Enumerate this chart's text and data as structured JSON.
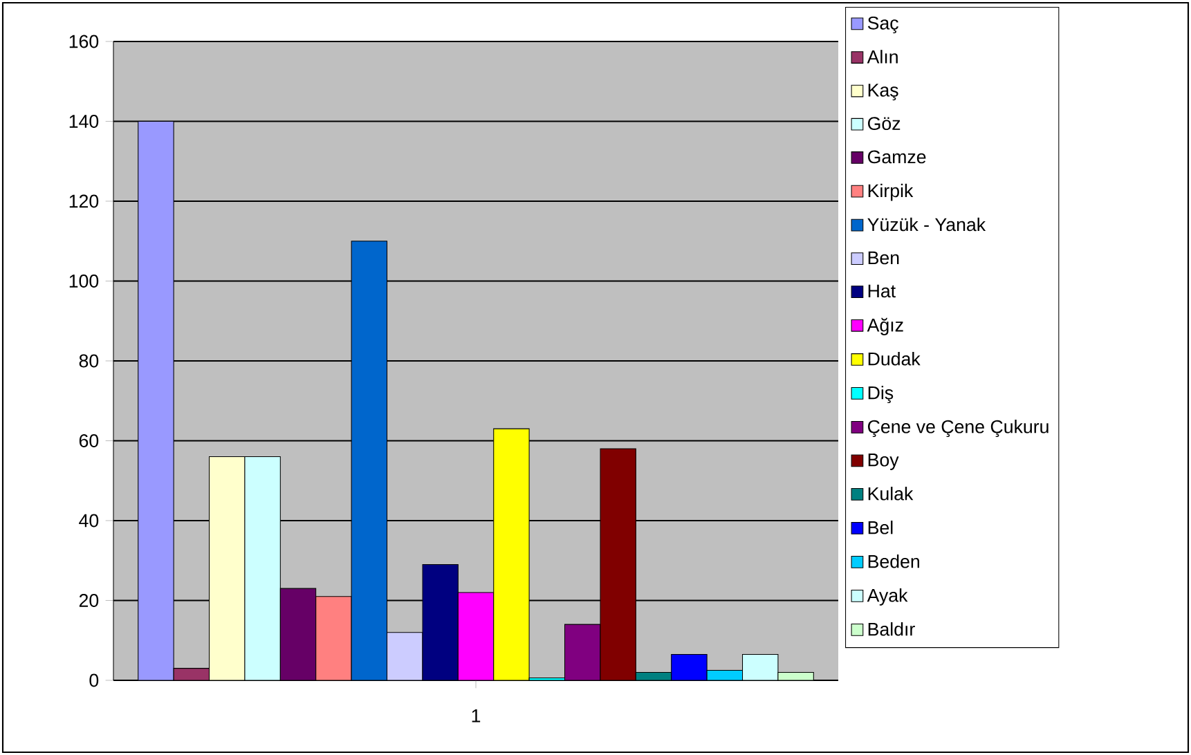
{
  "chart_data": {
    "type": "bar",
    "categories": [
      "1"
    ],
    "series": [
      {
        "name": "Saç",
        "color": "#9999ff",
        "values": [
          140
        ]
      },
      {
        "name": "Alın",
        "color": "#993366",
        "values": [
          3
        ]
      },
      {
        "name": "Kaş",
        "color": "#ffffcc",
        "values": [
          56
        ]
      },
      {
        "name": "Göz",
        "color": "#ccffff",
        "values": [
          56
        ]
      },
      {
        "name": "Gamze",
        "color": "#660066",
        "values": [
          23
        ]
      },
      {
        "name": "Kirpik",
        "color": "#ff8080",
        "values": [
          21
        ]
      },
      {
        "name": "Yüzük - Yanak",
        "color": "#0066cc",
        "values": [
          110
        ]
      },
      {
        "name": "Ben",
        "color": "#ccccff",
        "values": [
          12
        ]
      },
      {
        "name": "Hat",
        "color": "#000080",
        "values": [
          29
        ]
      },
      {
        "name": "Ağız",
        "color": "#ff00ff",
        "values": [
          22
        ]
      },
      {
        "name": "Dudak",
        "color": "#ffff00",
        "values": [
          63
        ]
      },
      {
        "name": "Diş",
        "color": "#00ffff",
        "values": [
          0.6
        ]
      },
      {
        "name": "Çene ve Çene Çukuru",
        "color": "#800080",
        "values": [
          14
        ]
      },
      {
        "name": "Boy",
        "color": "#800000",
        "values": [
          58
        ]
      },
      {
        "name": "Kulak",
        "color": "#008080",
        "values": [
          2
        ]
      },
      {
        "name": "Bel",
        "color": "#0000ff",
        "values": [
          6.5
        ]
      },
      {
        "name": "Beden",
        "color": "#00ccff",
        "values": [
          2.5
        ]
      },
      {
        "name": "Ayak",
        "color": "#ccffff",
        "values": [
          6.5
        ]
      },
      {
        "name": "Baldır",
        "color": "#ccffcc",
        "values": [
          2
        ]
      }
    ],
    "ylim": [
      0,
      160
    ],
    "yticks": [
      0,
      20,
      40,
      60,
      80,
      100,
      120,
      140,
      160
    ],
    "grid": "y",
    "legend": "right"
  }
}
